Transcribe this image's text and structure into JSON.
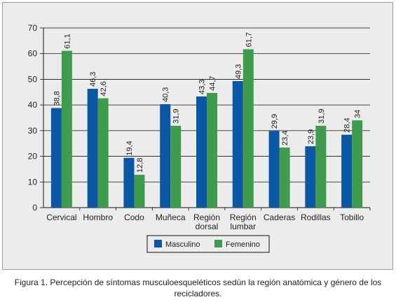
{
  "chart_data": {
    "type": "bar",
    "categories": [
      "Cervical",
      "Hombro",
      "Codo",
      "Muñeca",
      "Región\ndorsal",
      "Región\nlumbar",
      "Caderas",
      "Rodillas",
      "Tobillo"
    ],
    "series": [
      {
        "name": "Masculino",
        "values": [
          38.8,
          46.3,
          19.4,
          40.3,
          43.3,
          49.3,
          29.9,
          23.9,
          28.4
        ],
        "labels": [
          "38,8",
          "46,3",
          "19,4",
          "40,3",
          "43,3",
          "49,3",
          "29,9",
          "23,9",
          "28,4"
        ],
        "color": "#0b57a3"
      },
      {
        "name": "Femenino",
        "values": [
          61.1,
          42.6,
          12.8,
          31.9,
          44.7,
          61.7,
          23.4,
          31.9,
          34
        ],
        "labels": [
          "61,1",
          "42,6",
          "12,8",
          "31,9",
          "44,7",
          "61,7",
          "23,4",
          "31,9",
          "34"
        ],
        "color": "#3f9b4e"
      }
    ],
    "ylim": [
      0,
      70
    ],
    "yticks": [
      0,
      10,
      20,
      30,
      40,
      50,
      60,
      70
    ],
    "grid": true,
    "legend_position": "bottom-center",
    "title": "",
    "xlabel": "",
    "ylabel": ""
  },
  "caption": "Figura 1. Percepción de síntomas musculoesqueléticos sedún la región anatómica y género de los recicladores."
}
